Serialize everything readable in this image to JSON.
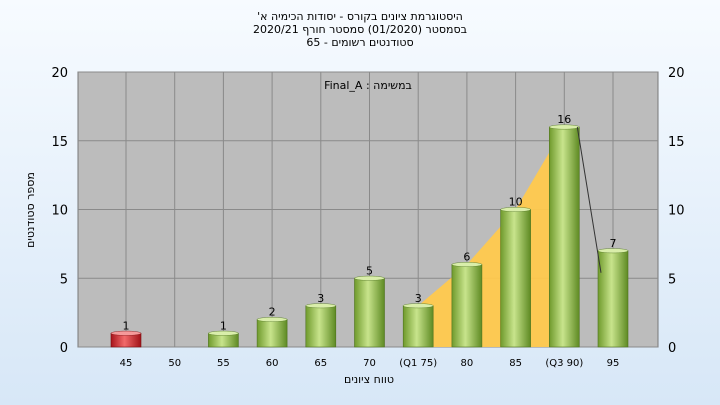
{
  "chart_data": {
    "type": "bar",
    "title_lines": [
      "היסטוגרמת ציונים בקורס - יסודות הכימיה א'",
      "בסמסטר  (01/2020)  סמסטר חורף  2020/21",
      "סטודנטים רשומים - 65"
    ],
    "annotation": "במשימה : Final_A",
    "xlabel": "טווח ציונים",
    "ylabel": "מספר סטודנטים",
    "categories": [
      "45",
      "50",
      "55",
      "60",
      "65",
      "70",
      "(Q1 75)",
      "80",
      "85",
      "(Q3 90)",
      "95"
    ],
    "values": [
      1,
      0,
      1,
      2,
      3,
      5,
      3,
      6,
      10,
      16,
      7
    ],
    "value_labels": [
      "1",
      "",
      "1",
      "2",
      "3",
      "5",
      "3",
      "6",
      "10",
      "16",
      "7"
    ],
    "highlight_index": 0,
    "bar_color": "#8ec04a",
    "highlight_color": "#d9262e",
    "band_color": "#ffc94d",
    "quartile_band": {
      "from": "(Q1 75)",
      "to": "(Q3 90)"
    },
    "ylim": [
      0,
      20
    ],
    "yticks": [
      0,
      5,
      10,
      15,
      20
    ],
    "grid": true,
    "y_axis_right": true,
    "plot_background": "#bcbcbc"
  }
}
